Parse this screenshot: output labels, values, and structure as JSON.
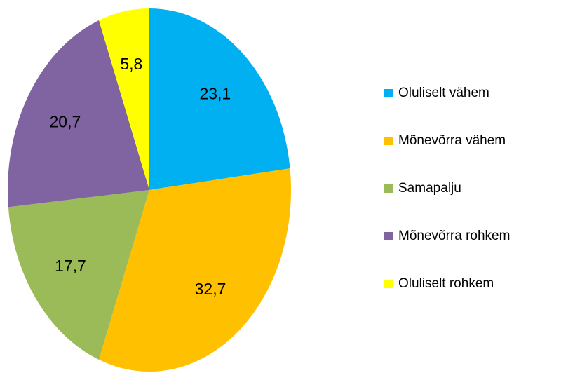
{
  "chart_data": {
    "type": "pie",
    "categories": [
      "Oluliselt vähem",
      "Mõnevõrra vähem",
      "Samapalju",
      "Mõnevõrra rohkem",
      "Oluliselt rohkem"
    ],
    "values": [
      23.1,
      32.7,
      17.7,
      20.7,
      5.8
    ],
    "value_labels": [
      "23,1",
      "32,7",
      "17,7",
      "20,7",
      "5,8"
    ],
    "colors": [
      "#00b0f0",
      "#ffc000",
      "#9bbb59",
      "#8064a2",
      "#ffff00"
    ],
    "legend": "right"
  }
}
